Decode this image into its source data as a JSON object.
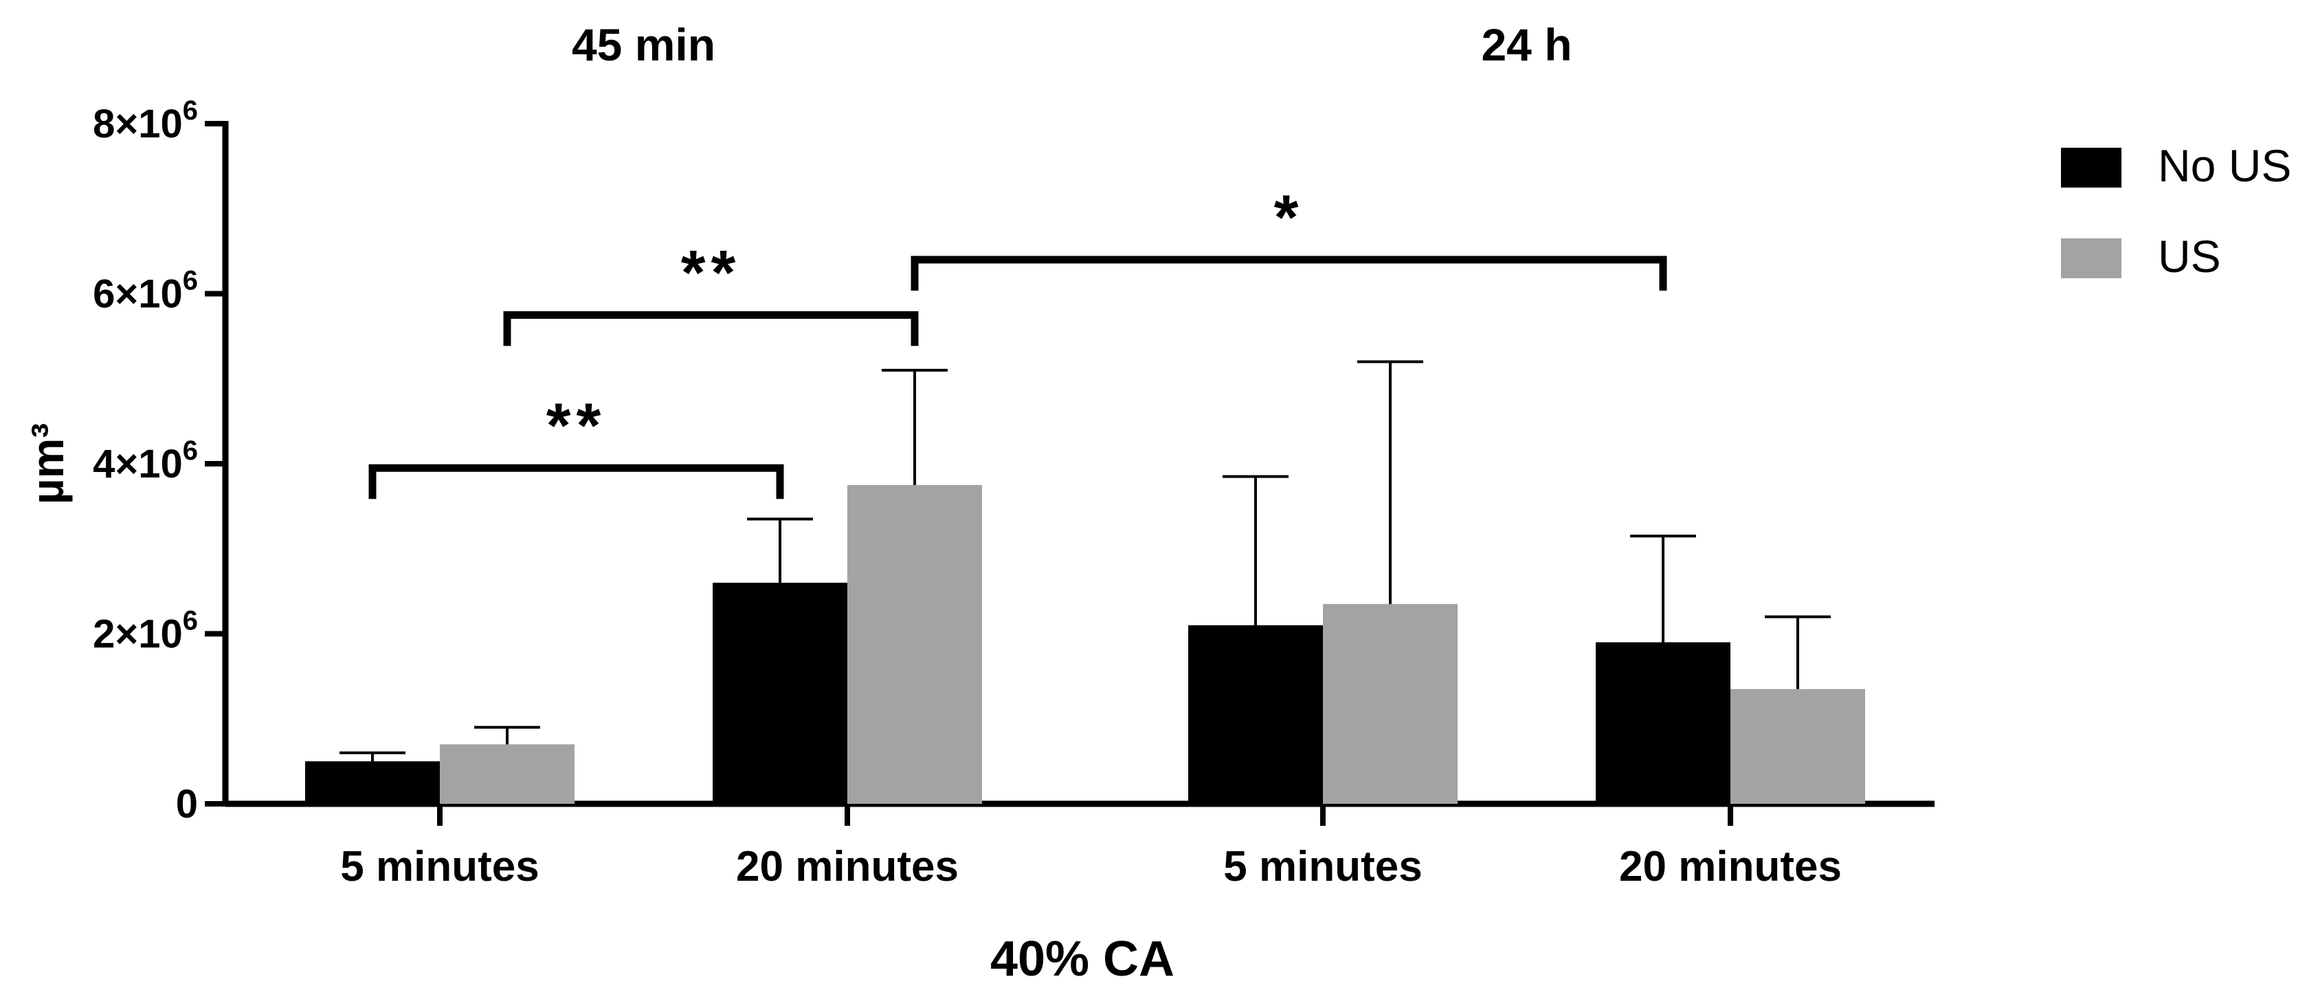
{
  "chart_data": {
    "type": "bar",
    "title": "",
    "xlabel": "40% CA",
    "ylabel": "µm³",
    "ylim": [
      0,
      8000000
    ],
    "yticks": [
      0,
      2000000,
      4000000,
      6000000,
      8000000
    ],
    "ytick_labels": [
      {
        "base": "0",
        "exp": ""
      },
      {
        "base": "2×10",
        "exp": "6"
      },
      {
        "base": "4×10",
        "exp": "6"
      },
      {
        "base": "6×10",
        "exp": "6"
      },
      {
        "base": "8×10",
        "exp": "6"
      }
    ],
    "groups": [
      {
        "label": "45 min",
        "categories": [
          0,
          1
        ]
      },
      {
        "label": "24 h",
        "categories": [
          2,
          3
        ]
      }
    ],
    "categories": [
      "5 minutes",
      "20 minutes",
      "5 minutes",
      "20 minutes"
    ],
    "series": [
      {
        "name": "No US",
        "color": "#000000",
        "values": [
          500000,
          2600000,
          2100000,
          1900000
        ],
        "errors": [
          100000,
          750000,
          1750000,
          1250000
        ]
      },
      {
        "name": "US",
        "color": "#a3a3a6",
        "values": [
          700000,
          3750000,
          2350000,
          1350000
        ],
        "errors": [
          200000,
          1350000,
          2850000,
          850000
        ]
      }
    ],
    "legend": {
      "position": "top-right"
    },
    "significance": [
      {
        "from": {
          "category": 0,
          "series": 0
        },
        "to": {
          "category": 1,
          "series": 0
        },
        "y": 3950000,
        "label": "**"
      },
      {
        "from": {
          "category": 0,
          "series": 1
        },
        "to": {
          "category": 1,
          "series": 1
        },
        "y": 5750000,
        "label": "**"
      },
      {
        "from": {
          "category": 1,
          "series": 1
        },
        "to": {
          "category": 3,
          "series": 0
        },
        "y": 6400000,
        "label": "*"
      }
    ]
  }
}
